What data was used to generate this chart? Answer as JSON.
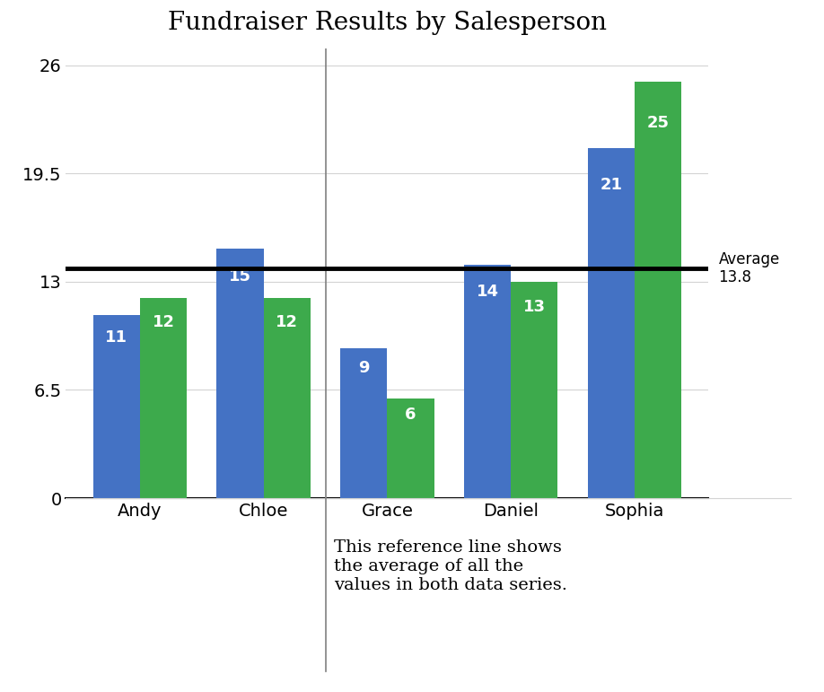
{
  "title": "Fundraiser Results by Salesperson",
  "categories": [
    "Andy",
    "Chloe",
    "Grace",
    "Daniel",
    "Sophia"
  ],
  "series1_values": [
    11,
    15,
    9,
    14,
    21
  ],
  "series2_values": [
    12,
    12,
    6,
    13,
    25
  ],
  "series1_color": "#4472C4",
  "series2_color": "#3DAA4C",
  "average_value": 13.8,
  "ylim": [
    0,
    27
  ],
  "yticks": [
    0,
    6.5,
    13,
    19.5,
    26
  ],
  "ytick_labels": [
    "0",
    "6.5",
    "13",
    "19.5",
    "26"
  ],
  "bar_width": 0.38,
  "label_fontsize": 13,
  "title_fontsize": 20,
  "tick_fontsize": 14,
  "annotation_text": "This reference line shows\nthe average of all the\nvalues in both data series.",
  "annotation_fontsize": 14,
  "divider_after_index": 1,
  "background_color": "#FFFFFF"
}
